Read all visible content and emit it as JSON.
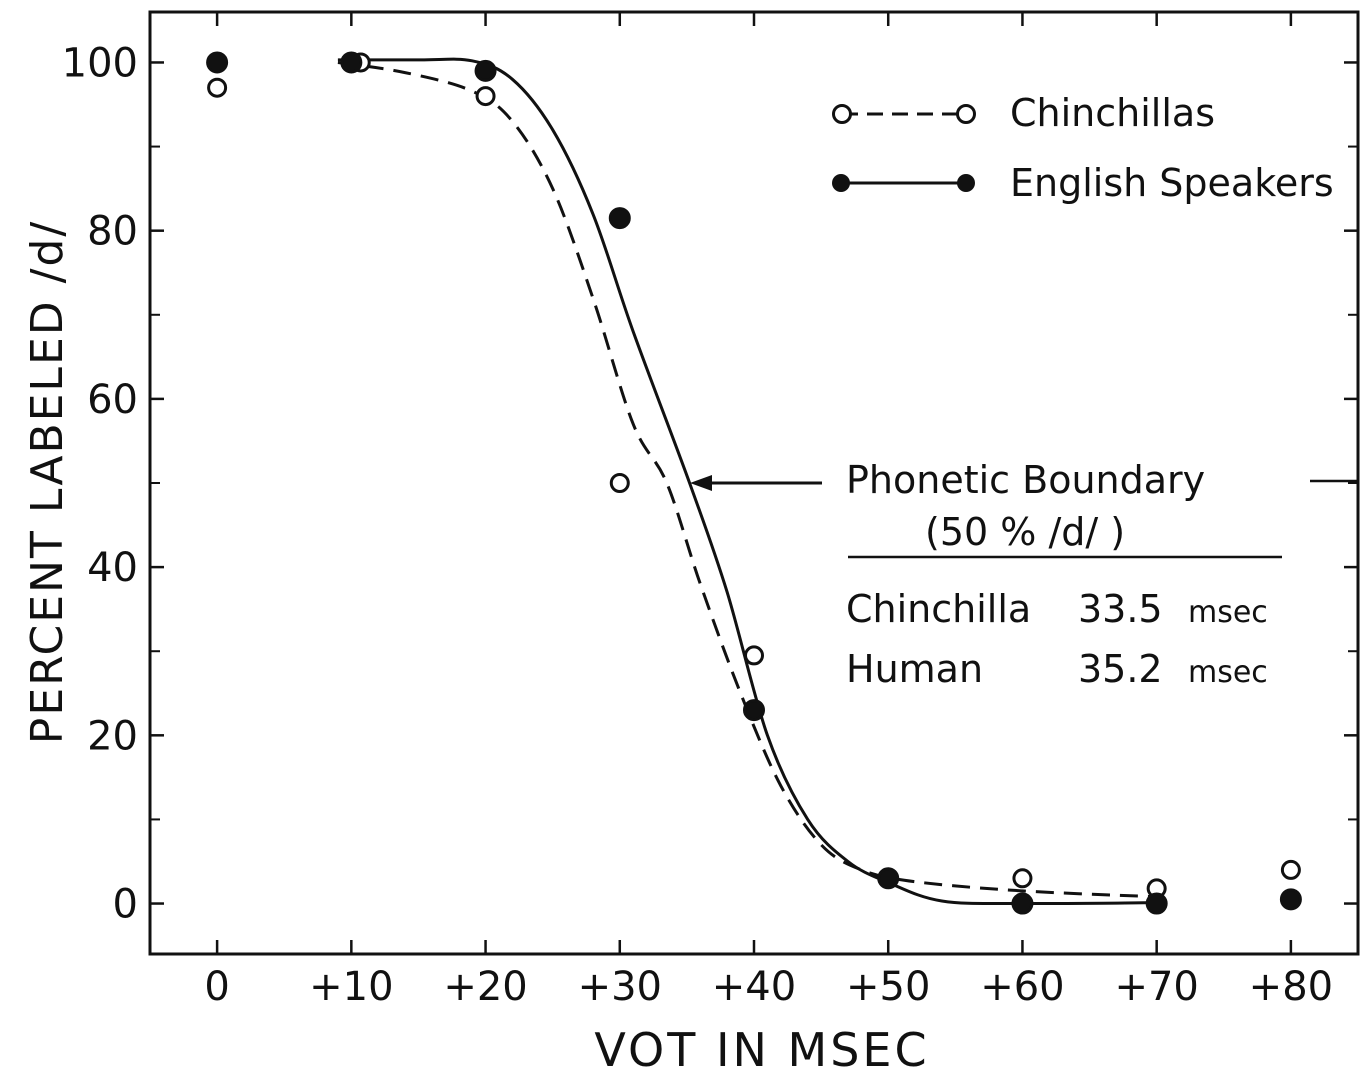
{
  "chart_data": {
    "type": "scatter",
    "xlabel": "VOT IN MSEC",
    "ylabel": "PERCENT LABELED /d/",
    "x_ticks": [
      0,
      10,
      20,
      30,
      40,
      50,
      60,
      70,
      80
    ],
    "x_tick_labels": [
      "0",
      "+10",
      "+20",
      "+30",
      "+40",
      "+50",
      "+60",
      "+70",
      "+80"
    ],
    "y_ticks": [
      0,
      20,
      40,
      60,
      80,
      100
    ],
    "y_tick_labels": [
      "0",
      "20",
      "40",
      "60",
      "80",
      "100"
    ],
    "xlim": [
      -5,
      85
    ],
    "ylim": [
      -6,
      106
    ],
    "grid": false,
    "legend_position": "top-right",
    "series": [
      {
        "name": "Chinchillas",
        "marker": "open-circle",
        "line": "dashed",
        "points": [
          [
            0,
            97
          ],
          [
            10,
            100
          ],
          [
            20,
            96
          ],
          [
            30,
            50
          ],
          [
            40,
            29.5
          ],
          [
            50,
            3
          ],
          [
            60,
            3
          ],
          [
            70,
            1.8
          ],
          [
            80,
            4
          ]
        ],
        "curve": [
          [
            9,
            100
          ],
          [
            14,
            98.8
          ],
          [
            19,
            96.6
          ],
          [
            22,
            93
          ],
          [
            25,
            85
          ],
          [
            28,
            72
          ],
          [
            31,
            57
          ],
          [
            33.5,
            50
          ],
          [
            36,
            38
          ],
          [
            39,
            25
          ],
          [
            42,
            14
          ],
          [
            45,
            7
          ],
          [
            48,
            4
          ],
          [
            52,
            2.6
          ],
          [
            60,
            1.5
          ],
          [
            70,
            0.8
          ]
        ]
      },
      {
        "name": "English Speakers",
        "marker": "filled-circle",
        "line": "solid",
        "points": [
          [
            0,
            100
          ],
          [
            10,
            100
          ],
          [
            20,
            99
          ],
          [
            30,
            81.5
          ],
          [
            40,
            23
          ],
          [
            50,
            3
          ],
          [
            60,
            0
          ],
          [
            70,
            0
          ],
          [
            80,
            0.5
          ]
        ],
        "curve": [
          [
            9,
            100.3
          ],
          [
            15,
            100.3
          ],
          [
            19,
            100.2
          ],
          [
            22,
            98
          ],
          [
            25,
            92
          ],
          [
            28,
            82
          ],
          [
            31,
            68
          ],
          [
            35.2,
            50
          ],
          [
            38,
            37
          ],
          [
            41,
            20
          ],
          [
            44,
            10
          ],
          [
            47,
            5
          ],
          [
            50,
            2.5
          ],
          [
            54,
            0.3
          ],
          [
            60,
            0
          ],
          [
            70,
            0.1
          ]
        ]
      }
    ],
    "annotations": {
      "boundary_title": "Phonetic Boundary",
      "boundary_sub": "(50 % /d/ )",
      "rows": [
        {
          "name": "Chinchilla",
          "value": "33.5",
          "unit": "msec"
        },
        {
          "name": "Human",
          "value": "35.2",
          "unit": "msec"
        }
      ]
    }
  }
}
